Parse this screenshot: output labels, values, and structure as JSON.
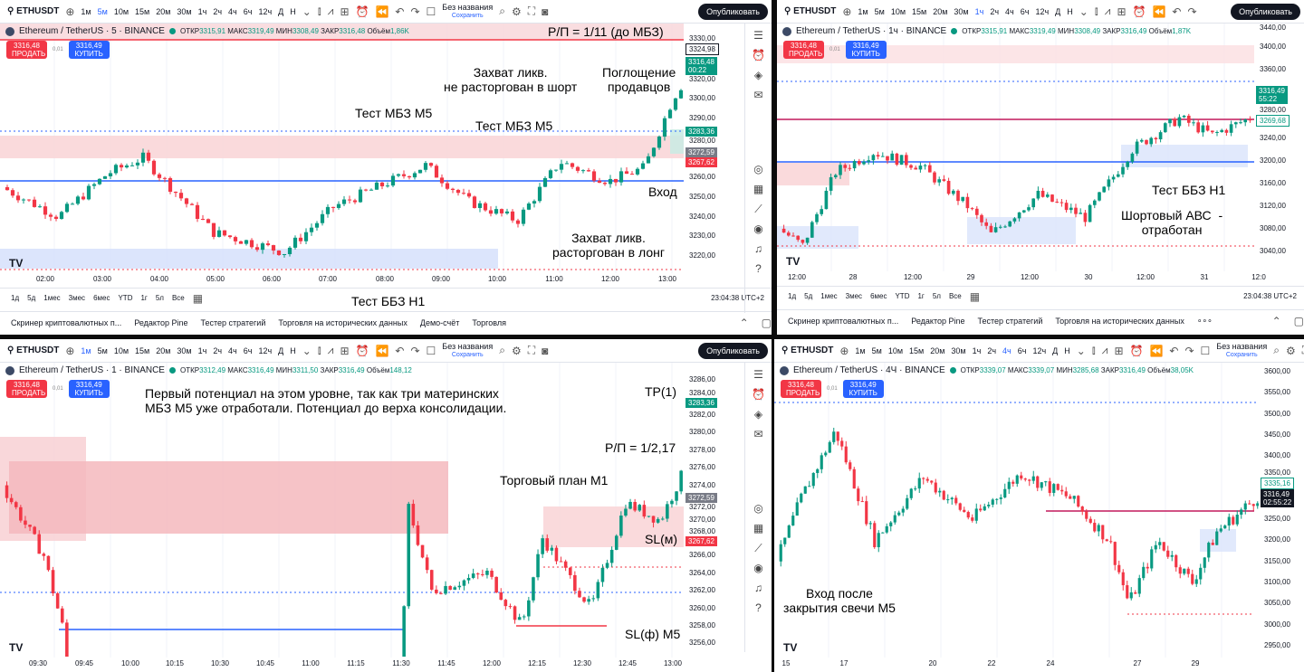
{
  "common": {
    "symbol": "ETHUSDT",
    "intervals": [
      "1м",
      "5м",
      "10м",
      "15м",
      "20м",
      "30м",
      "1ч",
      "2ч",
      "4ч",
      "6ч",
      "12ч",
      "Д",
      "Н"
    ],
    "layout_title": "Без названия",
    "save_label": "Сохранить",
    "publish_label": "Опубликовать",
    "sell_label": "ПРОДАТЬ",
    "buy_label": "КУПИТЬ",
    "spread": "0,01",
    "ranges": [
      "1д",
      "5д",
      "1мес",
      "3мес",
      "6мес",
      "YTD",
      "1г",
      "5л",
      "Все"
    ],
    "clock": "23:04:38 UTC+2",
    "colors": {
      "up": "#089981",
      "down": "#f23645",
      "accent": "#2962ff"
    }
  },
  "panels": [
    {
      "active_interval": "5м",
      "legend": {
        "title": "Ethereum / TetherUS · 5 · BINANCE",
        "open_label": "ОТКР",
        "open": "3315,91",
        "high_label": "МАКС",
        "high": "3319,49",
        "low_label": "МИН",
        "low": "3308,49",
        "close_label": "ЗАКР",
        "close": "3316,48",
        "volume_label": "Объём",
        "volume": "1,86K"
      },
      "sell": "3316,48",
      "buy": "3316,49",
      "price_ticks": [
        "3330,00",
        "3320,00",
        "3300,00",
        "3290,00",
        "3280,00",
        "3260,00",
        "3250,00",
        "3240,00",
        "3230,00",
        "3220,00"
      ],
      "badges": [
        {
          "value": "3324,98",
          "color": "outline"
        },
        {
          "value": "3316,48",
          "sub": "00:22",
          "color": "#089981"
        },
        {
          "value": "3283,36",
          "color": "#089981"
        },
        {
          "value": "3272,59",
          "color": "#787b86"
        },
        {
          "value": "3267,62",
          "color": "#f23645"
        }
      ],
      "time_ticks": [
        "02:00",
        "03:00",
        "04:00",
        "05:00",
        "06:00",
        "07:00",
        "08:00",
        "09:00",
        "10:00",
        "11:00",
        "12:00",
        "13:00"
      ],
      "annotations": [
        "Р/П = 1/11 (до МБЗ)",
        "Захват ликв.\nне расторгован в шорт",
        "Поглощение\nпродавцов",
        "Тест МБЗ М5",
        "Тест МБЗ М5",
        "Вход",
        "Захват ликв.\nрасторгован в лонг",
        "Тест ББЗ Н1"
      ],
      "bottom_bar": [
        "Скринер криптовалютных п...",
        "Редактор Pine",
        "Тестер стратегий",
        "Торговля на исторических данных",
        "Демо-счёт",
        "Торговля"
      ]
    },
    {
      "active_interval": "1ч",
      "legend": {
        "title": "Ethereum / TetherUS · 1ч · BINANCE",
        "open_label": "ОТКР",
        "open": "3315,91",
        "high_label": "МАКС",
        "high": "3319,49",
        "low_label": "МИН",
        "low": "3308,49",
        "close_label": "ЗАКР",
        "close": "3316,49",
        "volume_label": "Объём",
        "volume": "1,87K"
      },
      "sell": "3316,48",
      "buy": "3316,49",
      "price_ticks": [
        "3440,00",
        "3400,00",
        "3360,00",
        "3280,00",
        "3240,00",
        "3200,00",
        "3160,00",
        "3120,00",
        "3080,00",
        "3040,00"
      ],
      "badges": [
        {
          "value": "3316,49",
          "sub": "55:22",
          "color": "#089981"
        },
        {
          "value": "3269,68",
          "color": "outline-green"
        }
      ],
      "time_ticks": [
        "12:00",
        "28",
        "12:00",
        "29",
        "12:00",
        "30",
        "12:00",
        "31",
        "12:0"
      ],
      "annotations": [
        "Тест ББЗ Н1",
        "Шортовый АВС  -\nотработан"
      ],
      "bottom_bar": [
        "Скринер криптовалютных п...",
        "Редактор Pine",
        "Тестер стратегий",
        "Торговля на исторических данных",
        "∘∘∘"
      ]
    },
    {
      "active_interval": "1м",
      "legend": {
        "title": "Ethereum / TetherUS · 1 · BINANCE",
        "open_label": "ОТКР",
        "open": "3312,49",
        "high_label": "МАКС",
        "high": "3316,49",
        "low_label": "МИН",
        "low": "3311,50",
        "close_label": "ЗАКР",
        "close": "3316,49",
        "volume_label": "Объём",
        "volume": "148,12"
      },
      "sell": "3316,48",
      "buy": "3316,49",
      "price_ticks": [
        "3286,00",
        "3284,00",
        "3282,00",
        "3280,00",
        "3278,00",
        "3276,00",
        "3274,00",
        "3272,00",
        "3270,00",
        "3268,00",
        "3266,00",
        "3264,00",
        "3262,00",
        "3260,00",
        "3258,00",
        "3256,00"
      ],
      "badges": [
        {
          "value": "3283,36",
          "color": "#089981"
        },
        {
          "value": "3272,59",
          "color": "#787b86"
        },
        {
          "value": "3267,62",
          "color": "#f23645"
        }
      ],
      "time_ticks": [
        "09:30",
        "09:45",
        "10:00",
        "10:15",
        "10:30",
        "10:45",
        "11:00",
        "11:15",
        "11:30",
        "11:45",
        "12:00",
        "12:15",
        "12:30",
        "12:45",
        "13:00"
      ],
      "annotations": [
        "Первый потенциал на этом уровне, так как три материнских\nМБЗ М5 уже отработали. Потенциал до верха консолидации.",
        "TP(1)",
        "Р/П = 1/2,17",
        "Торговый план М1",
        "SL(м)",
        "Вход после\nзакрытия свечи М5",
        "SL(ф) М5"
      ]
    },
    {
      "active_interval": "4ч",
      "legend": {
        "title": "Ethereum / TetherUS · 4Ч · BINANCE",
        "open_label": "ОТКР",
        "open": "3339,07",
        "high_label": "МАКС",
        "high": "3339,07",
        "low_label": "МИН",
        "low": "3285,68",
        "close_label": "ЗАКР",
        "close": "3316,49",
        "volume_label": "Объём",
        "volume": "38,05K"
      },
      "sell": "3316,48",
      "buy": "3316,49",
      "price_ticks": [
        "3600,00",
        "3550,00",
        "3500,00",
        "3450,00",
        "3400,00",
        "3350,00",
        "3250,00",
        "3200,00",
        "3150,00",
        "3100,00",
        "3050,00",
        "3000,00",
        "2950,00"
      ],
      "badges": [
        {
          "value": "3335,16",
          "color": "outline-green"
        },
        {
          "value": "3316,49",
          "sub": "02:55:22",
          "color": "#131722"
        }
      ],
      "time_ticks": [
        "15",
        "17",
        "20",
        "22",
        "24",
        "27",
        "29"
      ],
      "annotations": []
    }
  ]
}
